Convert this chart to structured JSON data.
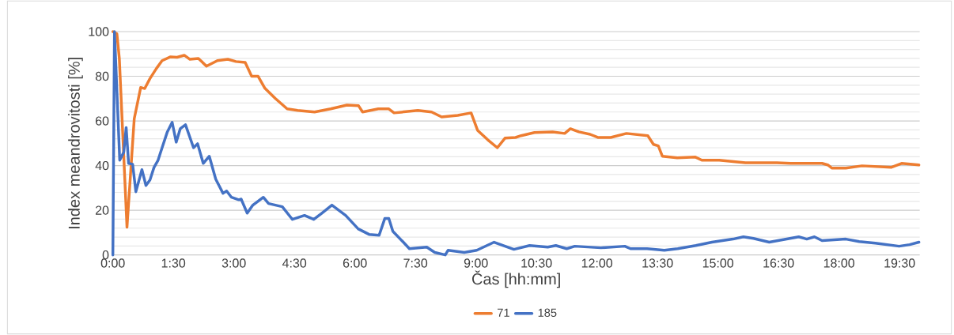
{
  "chart_data": {
    "type": "line",
    "xlabel": "Čas [hh:mm]",
    "ylabel": "Index meandrovitosti [%]",
    "xlim": [
      0,
      20
    ],
    "ylim": [
      0,
      100
    ],
    "xticks": [
      {
        "value": 0,
        "label": "0:00"
      },
      {
        "value": 1.5,
        "label": "1:30"
      },
      {
        "value": 3,
        "label": "3:00"
      },
      {
        "value": 4.5,
        "label": "4:30"
      },
      {
        "value": 6,
        "label": "6:00"
      },
      {
        "value": 7.5,
        "label": "7:30"
      },
      {
        "value": 9,
        "label": "9:00"
      },
      {
        "value": 10.5,
        "label": "10:30"
      },
      {
        "value": 12,
        "label": "12:00"
      },
      {
        "value": 13.5,
        "label": "13:30"
      },
      {
        "value": 15,
        "label": "15:00"
      },
      {
        "value": 16.5,
        "label": "16:30"
      },
      {
        "value": 18,
        "label": "18:00"
      },
      {
        "value": 19.5,
        "label": "19:30"
      }
    ],
    "yticks": [
      0,
      20,
      40,
      60,
      80,
      100
    ],
    "grid": "y",
    "legend": "bottom",
    "marker": "none",
    "line_style": "solid",
    "series": [
      {
        "name": "71",
        "color": "#ed7d31",
        "x": [
          0,
          0.1,
          0.16,
          0.35,
          0.53,
          0.69,
          0.79,
          0.92,
          1.08,
          1.22,
          1.43,
          1.59,
          1.77,
          1.91,
          2.12,
          2.32,
          2.59,
          2.85,
          3.05,
          3.28,
          3.44,
          3.6,
          3.77,
          4.03,
          4.32,
          4.58,
          5.0,
          5.4,
          5.8,
          6.09,
          6.19,
          6.58,
          6.84,
          6.97,
          7.56,
          7.9,
          8.15,
          8.55,
          8.88,
          9.04,
          9.29,
          9.53,
          9.72,
          9.98,
          10.12,
          10.45,
          10.9,
          11.2,
          11.34,
          11.55,
          11.83,
          12.02,
          12.34,
          12.73,
          13.26,
          13.4,
          13.52,
          13.62,
          13.99,
          14.44,
          14.6,
          15.03,
          15.68,
          16.46,
          16.8,
          17.58,
          17.72,
          17.82,
          18.17,
          18.57,
          19.29,
          19.55,
          19.98
        ],
        "values": [
          100,
          99,
          88,
          12.4,
          61,
          75,
          74.5,
          79,
          83.5,
          87,
          88.7,
          88.5,
          89.4,
          87.6,
          88,
          84.5,
          87,
          87.6,
          86.6,
          86.2,
          80,
          80,
          74.6,
          70,
          65.4,
          64.7,
          64,
          65.4,
          67.1,
          66.8,
          64,
          65.4,
          65.4,
          63.6,
          64.7,
          64,
          61.8,
          62.5,
          63.6,
          55.8,
          51.6,
          48,
          52.3,
          52.6,
          53.4,
          54.8,
          55.1,
          54.4,
          56.5,
          55.1,
          54,
          52.6,
          52.6,
          54.4,
          53.4,
          49.5,
          48.8,
          44.2,
          43.5,
          43.8,
          42.4,
          42.4,
          41.3,
          41.3,
          41,
          41,
          40.3,
          38.9,
          38.9,
          39.9,
          39.2,
          41,
          40.3
        ]
      },
      {
        "name": "185",
        "color": "#4472c4",
        "x": [
          0,
          0.04,
          0.17,
          0.27,
          0.33,
          0.39,
          0.49,
          0.57,
          0.72,
          0.82,
          0.92,
          1.02,
          1.12,
          1.22,
          1.35,
          1.47,
          1.57,
          1.67,
          1.8,
          2.0,
          2.1,
          2.24,
          2.39,
          2.55,
          2.73,
          2.82,
          2.94,
          3.12,
          3.18,
          3.33,
          3.47,
          3.73,
          3.86,
          4.2,
          4.45,
          4.75,
          4.98,
          5.18,
          5.43,
          5.77,
          6.08,
          6.35,
          6.6,
          6.74,
          6.84,
          6.94,
          7.2,
          7.35,
          7.78,
          7.98,
          8.24,
          8.31,
          8.71,
          9.02,
          9.45,
          9.94,
          10.33,
          10.78,
          10.98,
          11.25,
          11.45,
          12.1,
          12.69,
          12.83,
          13.24,
          13.67,
          14.0,
          14.45,
          14.85,
          15.37,
          15.63,
          15.88,
          16.27,
          17.0,
          17.2,
          17.39,
          17.58,
          18.17,
          18.5,
          18.9,
          19.49,
          19.75,
          19.98
        ],
        "values": [
          0,
          100,
          42.4,
          46,
          57,
          41,
          40.6,
          28.3,
          38.2,
          31.1,
          33.6,
          39.2,
          42.4,
          48,
          55.1,
          59.4,
          50.5,
          56.5,
          58.3,
          48,
          49.8,
          41,
          44.2,
          33.9,
          27.6,
          28.6,
          25.8,
          24.7,
          25,
          18.7,
          22.3,
          25.8,
          23,
          21.6,
          15.9,
          17.7,
          15.9,
          18.7,
          22.3,
          17.7,
          11.7,
          9.2,
          8.8,
          16.3,
          16.3,
          10.6,
          5.7,
          2.8,
          3.5,
          1.1,
          0,
          2.1,
          1.1,
          2.1,
          5.7,
          2.5,
          4.2,
          3.5,
          4.2,
          2.8,
          3.9,
          3.2,
          3.9,
          2.8,
          2.8,
          2.1,
          2.8,
          4.2,
          5.7,
          7.1,
          8.1,
          7.4,
          5.7,
          8.1,
          7.1,
          8.1,
          6.4,
          7.1,
          6.0,
          5.3,
          3.9,
          4.6,
          5.7
        ]
      }
    ]
  }
}
